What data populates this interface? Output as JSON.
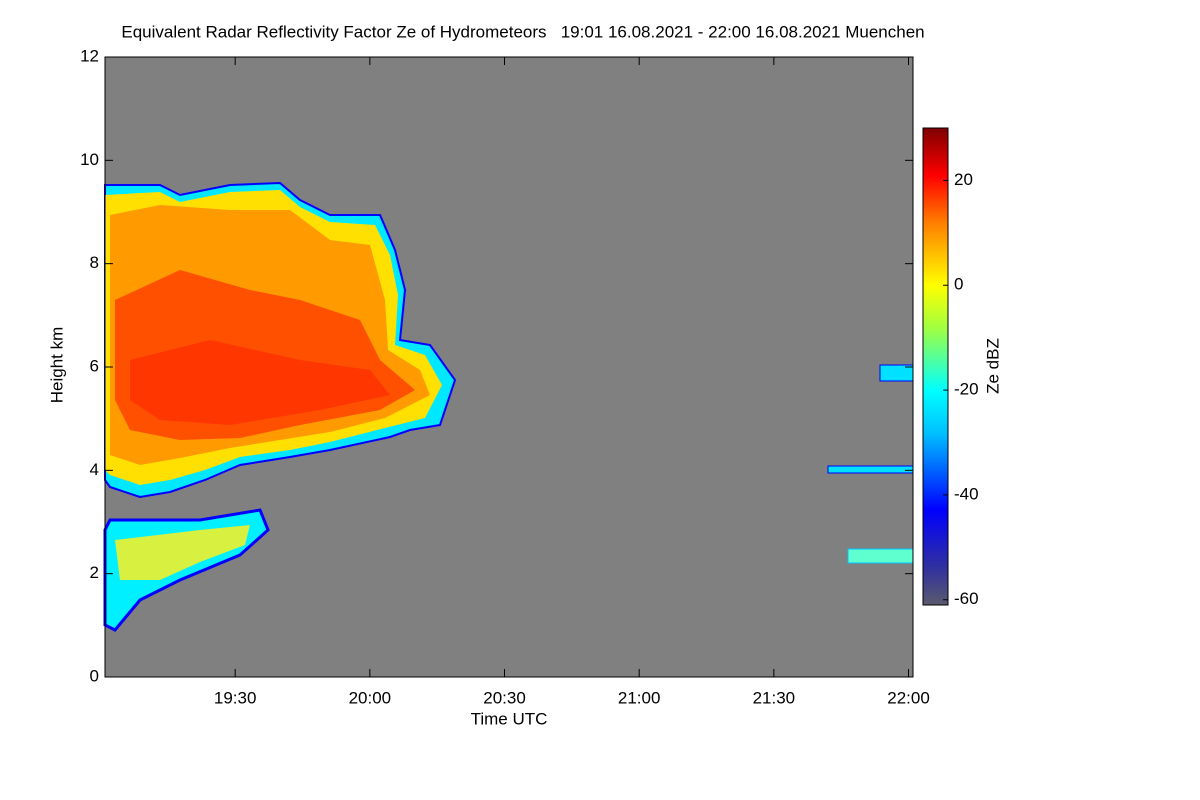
{
  "chart_data": {
    "type": "heatmap",
    "title": "Equivalent Radar Reflectivity Factor Ze of Hydrometeors   19:01 16.08.2021 - 22:00 16.08.2021 Muenchen",
    "x_label": "Time UTC",
    "y_label": "Height km",
    "colorbar_label": "Ze dBZ",
    "xlim": [
      1141,
      1321
    ],
    "xticks": [
      {
        "value": 1170,
        "label": "19:30"
      },
      {
        "value": 1200,
        "label": "20:00"
      },
      {
        "value": 1230,
        "label": "20:30"
      },
      {
        "value": 1260,
        "label": "21:00"
      },
      {
        "value": 1290,
        "label": "21:30"
      },
      {
        "value": 1320,
        "label": "22:00"
      }
    ],
    "ylim": [
      0,
      12
    ],
    "yticks": [
      0,
      2,
      4,
      6,
      8,
      10,
      12
    ],
    "zlim": [
      -61,
      30
    ],
    "zticks": [
      -60,
      -40,
      -20,
      0,
      20
    ]
  }
}
